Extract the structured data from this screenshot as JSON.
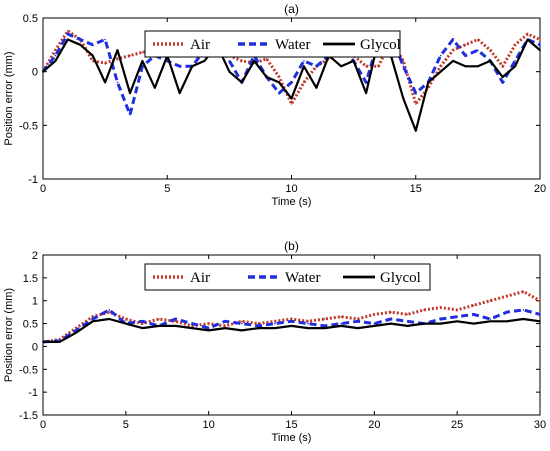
{
  "chart_data": [
    {
      "type": "line",
      "title": "(a)",
      "xlabel": "Time (s)",
      "ylabel": "Position error (mm)",
      "xlim": [
        0,
        20
      ],
      "ylim": [
        -1,
        0.5
      ],
      "xticks": [
        "0",
        "5",
        "10",
        "15",
        "20"
      ],
      "yticks": [
        "-1",
        "-0.5",
        "0",
        "0.5"
      ],
      "legend_position": "top-center",
      "series": [
        {
          "name": "Air",
          "color": "#c0392b",
          "style": "dotted",
          "x": [
            0,
            0.5,
            1,
            1.5,
            2,
            2.5,
            3,
            3.5,
            4,
            4.5,
            5,
            5.5,
            6,
            6.5,
            7,
            7.5,
            8,
            8.5,
            9,
            9.5,
            10,
            10.5,
            11,
            11.5,
            12,
            12.5,
            13,
            13.5,
            14,
            14.5,
            15,
            15.5,
            16,
            16.5,
            17,
            17.5,
            18,
            18.5,
            19,
            19.5,
            20
          ],
          "y": [
            0,
            0.2,
            0.38,
            0.3,
            0.1,
            0.08,
            0.12,
            0.15,
            0.18,
            0.2,
            0.24,
            0.26,
            0.28,
            0.26,
            0.3,
            0.15,
            0.1,
            0.08,
            0.12,
            -0.05,
            -0.3,
            -0.1,
            0.05,
            0.12,
            0.2,
            0.15,
            0.05,
            0.05,
            0.3,
            0.1,
            -0.3,
            -0.15,
            0.05,
            0.2,
            0.25,
            0.3,
            0.2,
            0.05,
            0.25,
            0.35,
            0.3
          ]
        },
        {
          "name": "Water",
          "color": "#1f2fdd",
          "style": "dashed",
          "x": [
            0,
            0.5,
            1,
            1.5,
            2,
            2.5,
            3,
            3.5,
            4,
            4.5,
            5,
            5.5,
            6,
            6.5,
            7,
            7.5,
            8,
            8.5,
            9,
            9.5,
            10,
            10.5,
            11,
            11.5,
            12,
            12.5,
            13,
            13.5,
            14,
            14.5,
            15,
            15.5,
            16,
            16.5,
            17,
            17.5,
            18,
            18.5,
            19,
            19.5,
            20
          ],
          "y": [
            0,
            0.15,
            0.35,
            0.3,
            0.25,
            0.3,
            -0.1,
            -0.4,
            0.05,
            0.15,
            0.1,
            0.05,
            0.05,
            0.2,
            0.35,
            0.1,
            -0.1,
            0.15,
            -0.05,
            -0.2,
            -0.1,
            0.1,
            0.05,
            0.15,
            0.2,
            0.1,
            -0.1,
            0.3,
            0.35,
            0.05,
            -0.2,
            -0.1,
            0.15,
            0.3,
            0.15,
            0.2,
            0.1,
            -0.1,
            0.1,
            0.3,
            0.25
          ]
        },
        {
          "name": "Glycol",
          "color": "#000000",
          "style": "solid",
          "x": [
            0,
            0.5,
            1,
            1.5,
            2,
            2.5,
            3,
            3.5,
            4,
            4.5,
            5,
            5.5,
            6,
            6.5,
            7,
            7.5,
            8,
            8.5,
            9,
            9.5,
            10,
            10.5,
            11,
            11.5,
            12,
            12.5,
            13,
            13.5,
            14,
            14.5,
            15,
            15.5,
            16,
            16.5,
            17,
            17.5,
            18,
            18.5,
            19,
            19.5,
            20
          ],
          "y": [
            0,
            0.1,
            0.3,
            0.25,
            0.15,
            -0.1,
            0.2,
            -0.2,
            0.1,
            -0.15,
            0.15,
            -0.2,
            0.05,
            0.1,
            0.25,
            0,
            -0.1,
            0.1,
            -0.05,
            -0.1,
            -0.25,
            0.05,
            -0.15,
            0.15,
            0.05,
            0.1,
            -0.2,
            0.3,
            0.15,
            -0.25,
            -0.55,
            -0.1,
            0,
            0.1,
            0.05,
            0.05,
            0.1,
            -0.05,
            0.05,
            0.3,
            0.2
          ]
        }
      ]
    },
    {
      "type": "line",
      "title": "(b)",
      "xlabel": "Time (s)",
      "ylabel": "Position error (mm)",
      "xlim": [
        0,
        30
      ],
      "ylim": [
        -1.5,
        2
      ],
      "xticks": [
        "0",
        "5",
        "10",
        "15",
        "20",
        "25",
        "30"
      ],
      "yticks": [
        "-1.5",
        "-1",
        "-0.5",
        "0",
        "0.5",
        "1",
        "1.5",
        "2"
      ],
      "legend_position": "top-center",
      "series": [
        {
          "name": "Air",
          "color": "#c0392b",
          "style": "dotted",
          "x": [
            0,
            1,
            2,
            3,
            4,
            5,
            6,
            7,
            8,
            9,
            10,
            11,
            12,
            13,
            14,
            15,
            16,
            17,
            18,
            19,
            20,
            21,
            22,
            23,
            24,
            25,
            26,
            27,
            28,
            29,
            30
          ],
          "y": [
            0.1,
            0.15,
            0.4,
            0.65,
            0.75,
            0.6,
            0.5,
            0.6,
            0.55,
            0.45,
            0.5,
            0.45,
            0.55,
            0.5,
            0.55,
            0.6,
            0.55,
            0.6,
            0.65,
            0.6,
            0.7,
            0.75,
            0.7,
            0.8,
            0.85,
            0.8,
            0.9,
            1.0,
            1.1,
            1.2,
            1.0
          ]
        },
        {
          "name": "Water",
          "color": "#1f2fdd",
          "style": "dashed",
          "x": [
            0,
            1,
            2,
            3,
            4,
            5,
            6,
            7,
            8,
            9,
            10,
            11,
            12,
            13,
            14,
            15,
            16,
            17,
            18,
            19,
            20,
            21,
            22,
            23,
            24,
            25,
            26,
            27,
            28,
            29,
            30
          ],
          "y": [
            0.1,
            0.12,
            0.35,
            0.6,
            0.8,
            0.5,
            0.55,
            0.45,
            0.6,
            0.5,
            0.4,
            0.55,
            0.5,
            0.45,
            0.5,
            0.55,
            0.5,
            0.45,
            0.5,
            0.55,
            0.5,
            0.6,
            0.55,
            0.5,
            0.6,
            0.65,
            0.7,
            0.6,
            0.75,
            0.8,
            0.7
          ]
        },
        {
          "name": "Glycol",
          "color": "#000000",
          "style": "solid",
          "x": [
            0,
            1,
            2,
            3,
            4,
            5,
            6,
            7,
            8,
            9,
            10,
            11,
            12,
            13,
            14,
            15,
            16,
            17,
            18,
            19,
            20,
            21,
            22,
            23,
            24,
            25,
            26,
            27,
            28,
            29,
            30
          ],
          "y": [
            0.1,
            0.1,
            0.3,
            0.55,
            0.6,
            0.5,
            0.4,
            0.45,
            0.45,
            0.4,
            0.35,
            0.4,
            0.35,
            0.4,
            0.4,
            0.45,
            0.4,
            0.4,
            0.45,
            0.4,
            0.45,
            0.5,
            0.45,
            0.5,
            0.5,
            0.55,
            0.5,
            0.55,
            0.55,
            0.6,
            0.55
          ]
        }
      ]
    }
  ]
}
